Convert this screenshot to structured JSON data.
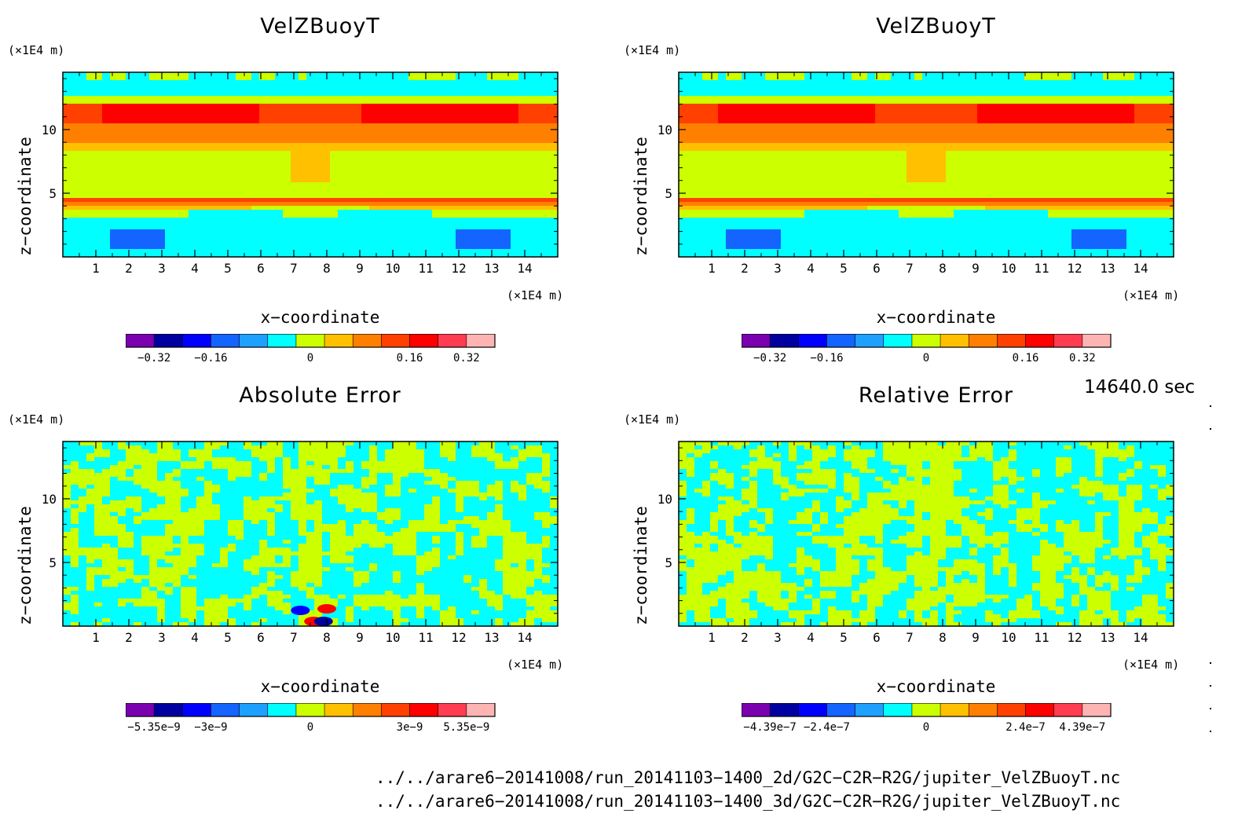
{
  "panels": [
    {
      "title": "VelZBuoyT",
      "yunit": "(×1E4 m)",
      "xunit": "(×1E4 m)",
      "ylabel": "z−coordinate",
      "xlabel": "x−coordinate",
      "field": "main",
      "colorbar": {
        "labels": [
          "−0.32",
          "−0.16",
          "0",
          "0.16",
          "0.32"
        ]
      }
    },
    {
      "title": "VelZBuoyT",
      "yunit": "(×1E4 m)",
      "xunit": "(×1E4 m)",
      "ylabel": "z−coordinate",
      "xlabel": "x−coordinate",
      "field": "main",
      "colorbar": {
        "labels": [
          "−0.32",
          "−0.16",
          "0",
          "0.16",
          "0.32"
        ]
      }
    },
    {
      "title": "Absolute Error",
      "yunit": "(×1E4 m)",
      "xunit": "(×1E4 m)",
      "ylabel": "z−coordinate",
      "xlabel": "x−coordinate",
      "field": "abs",
      "colorbar": {
        "labels": [
          "−5.35e−9",
          "−3e−9",
          "0",
          "3e−9",
          "5.35e−9"
        ]
      }
    },
    {
      "title": "Relative Error",
      "yunit": "(×1E4 m)",
      "xunit": "(×1E4 m)",
      "ylabel": "z−coordinate",
      "xlabel": "x−coordinate",
      "field": "rel",
      "colorbar": {
        "labels": [
          "−4.39e−7",
          "−2.4e−7",
          "0",
          "2.4e−7",
          "4.39e−7"
        ]
      }
    }
  ],
  "time_label": "14640.0 sec",
  "files": [
    "../../arare6−20141008/run_20141103−1400_2d/G2C−C2R−R2G/jupiter_VelZBuoyT.nc",
    "../../arare6−20141008/run_20141103−1400_3d/G2C−C2R−R2G/jupiter_VelZBuoyT.nc"
  ],
  "colormap": [
    "#7a00b0",
    "#0000a0",
    "#0000ff",
    "#1464ff",
    "#1ea0ff",
    "#00ffff",
    "#ccff00",
    "#ffc000",
    "#ff8000",
    "#ff4000",
    "#ff0000",
    "#ff3c50",
    "#ffb4b4"
  ],
  "chart_data": [
    {
      "type": "heatmap",
      "title": "VelZBuoyT",
      "xlabel": "x−coordinate",
      "ylabel": "z−coordinate",
      "xlim": [
        0,
        15
      ],
      "ylim": [
        0,
        14.5
      ],
      "xticks": [
        1,
        2,
        3,
        4,
        5,
        6,
        7,
        8,
        9,
        10,
        11,
        12,
        13,
        14
      ],
      "yticks": [
        5,
        10
      ],
      "colorbar_range": [
        -0.32,
        0.32
      ]
    },
    {
      "type": "heatmap",
      "title": "VelZBuoyT",
      "xlabel": "x−coordinate",
      "ylabel": "z−coordinate",
      "xlim": [
        0,
        15
      ],
      "ylim": [
        0,
        14.5
      ],
      "xticks": [
        1,
        2,
        3,
        4,
        5,
        6,
        7,
        8,
        9,
        10,
        11,
        12,
        13,
        14
      ],
      "yticks": [
        5,
        10
      ],
      "colorbar_range": [
        -0.32,
        0.32
      ]
    },
    {
      "type": "heatmap",
      "title": "Absolute Error",
      "xlabel": "x−coordinate",
      "ylabel": "z−coordinate",
      "xlim": [
        0,
        15
      ],
      "ylim": [
        0,
        14.5
      ],
      "xticks": [
        1,
        2,
        3,
        4,
        5,
        6,
        7,
        8,
        9,
        10,
        11,
        12,
        13,
        14
      ],
      "yticks": [
        5,
        10
      ],
      "colorbar_range": [
        -5.35e-09,
        5.35e-09
      ]
    },
    {
      "type": "heatmap",
      "title": "Relative Error",
      "xlabel": "x−coordinate",
      "ylabel": "z−coordinate",
      "xlim": [
        0,
        15
      ],
      "ylim": [
        0,
        14.5
      ],
      "xticks": [
        1,
        2,
        3,
        4,
        5,
        6,
        7,
        8,
        9,
        10,
        11,
        12,
        13,
        14
      ],
      "yticks": [
        5,
        10
      ],
      "colorbar_range": [
        -4.39e-07,
        4.39e-07
      ]
    }
  ]
}
